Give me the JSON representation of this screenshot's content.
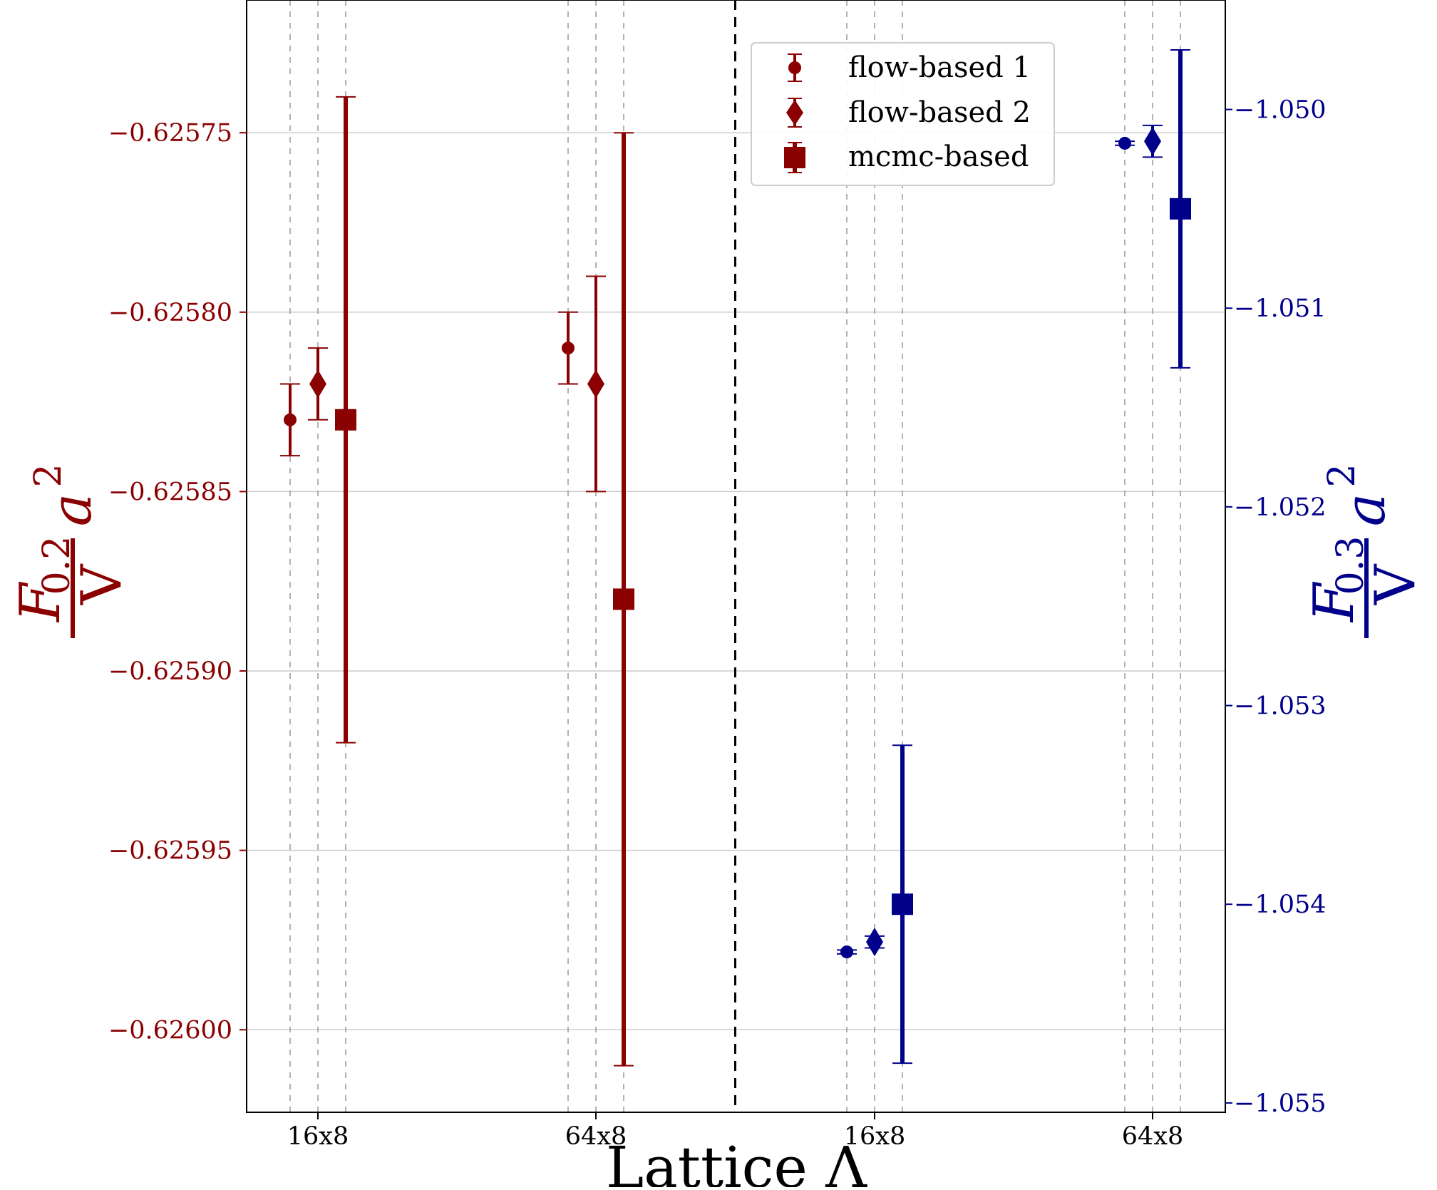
{
  "chart_data": {
    "type": "scatter",
    "xlabel": "Lattice Λ",
    "categories": [
      "16x8",
      "64x8",
      "16x8",
      "64x8"
    ],
    "left_axis": {
      "label": {
        "F": "F",
        "sub": "0.2",
        "den": "V",
        "a": "a",
        "exp": "2"
      },
      "color": "#8b0000",
      "ylim": [
        -0.626023,
        -0.625713
      ],
      "ticks": [
        -0.62575,
        -0.6258,
        -0.62585,
        -0.6259,
        -0.62595,
        -0.626
      ],
      "tick_labels": [
        "−0.62575",
        "−0.62580",
        "−0.62585",
        "−0.62590",
        "−0.62595",
        "−0.62600"
      ]
    },
    "right_axis": {
      "label": {
        "F": "F",
        "sub": "0.3",
        "den": "V",
        "a": "a",
        "exp": "2"
      },
      "color": "#00008b",
      "ylim": [
        -1.055047,
        -1.049449
      ],
      "ticks": [
        -1.05,
        -1.051,
        -1.052,
        -1.053,
        -1.054,
        -1.055
      ],
      "tick_labels": [
        "−1.050",
        "−1.051",
        "−1.052",
        "−1.053",
        "−1.054",
        "−1.055"
      ]
    },
    "legend": {
      "position": "top-right",
      "entries": [
        "flow-based 1",
        "flow-based 2",
        "mcmc-based"
      ]
    },
    "grid": {
      "horizontal": true,
      "vertical_dashed": true
    },
    "series": [
      {
        "name": "flow-based 1",
        "marker": "circle",
        "points": [
          {
            "category": 0,
            "axis": "left",
            "y": -0.62583,
            "yerr": 1e-05
          },
          {
            "category": 1,
            "axis": "left",
            "y": -0.62581,
            "yerr": 1e-05
          },
          {
            "category": 2,
            "axis": "right",
            "y": -1.05424,
            "yerr": 1e-05
          },
          {
            "category": 3,
            "axis": "right",
            "y": -1.05017,
            "yerr": 1e-05
          }
        ]
      },
      {
        "name": "flow-based 2",
        "marker": "diamond",
        "points": [
          {
            "category": 0,
            "axis": "left",
            "y": -0.62582,
            "yerr": 1e-05
          },
          {
            "category": 1,
            "axis": "left",
            "y": -0.62582,
            "yerr": 3e-05
          },
          {
            "category": 2,
            "axis": "right",
            "y": -1.05419,
            "yerr": 3e-05
          },
          {
            "category": 3,
            "axis": "right",
            "y": -1.05016,
            "yerr": 8e-05
          }
        ]
      },
      {
        "name": "mcmc-based",
        "marker": "square",
        "points": [
          {
            "category": 0,
            "axis": "left",
            "y": -0.62583,
            "yerr": 9e-05
          },
          {
            "category": 1,
            "axis": "left",
            "y": -0.62588,
            "yerr": 0.00013
          },
          {
            "category": 2,
            "axis": "right",
            "y": -1.054,
            "yerr": 0.0008
          },
          {
            "category": 3,
            "axis": "right",
            "y": -1.0505,
            "yerr": 0.0008
          }
        ]
      }
    ]
  }
}
